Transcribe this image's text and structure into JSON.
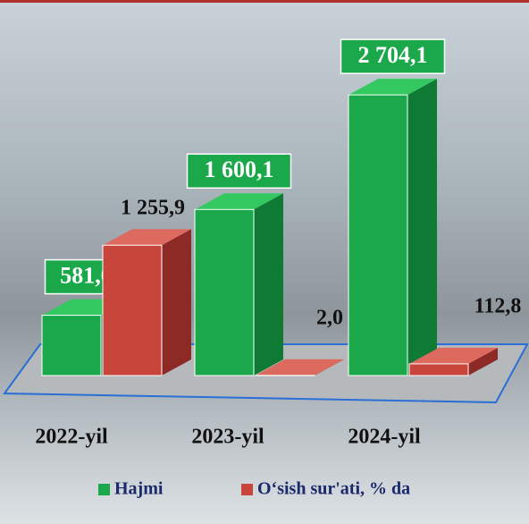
{
  "chart_data": {
    "type": "bar3d",
    "categories": [
      "2022-yil",
      "2023-yil",
      "2024-yil"
    ],
    "series": [
      {
        "name": "Hajmi",
        "color": "#1aa84a",
        "values": [
          581.0,
          1600.1,
          2704.1
        ],
        "value_labels": [
          "581,0",
          "1 600,1",
          "2 704,1"
        ]
      },
      {
        "name": "O‘sish sur'ati, % da",
        "color": "#c8453c",
        "values": [
          1255.9,
          2.0,
          112.8
        ],
        "value_labels": [
          "1 255,9",
          "2,0 m.",
          "112,8"
        ]
      }
    ],
    "ylim": [
      0,
      2800
    ]
  }
}
